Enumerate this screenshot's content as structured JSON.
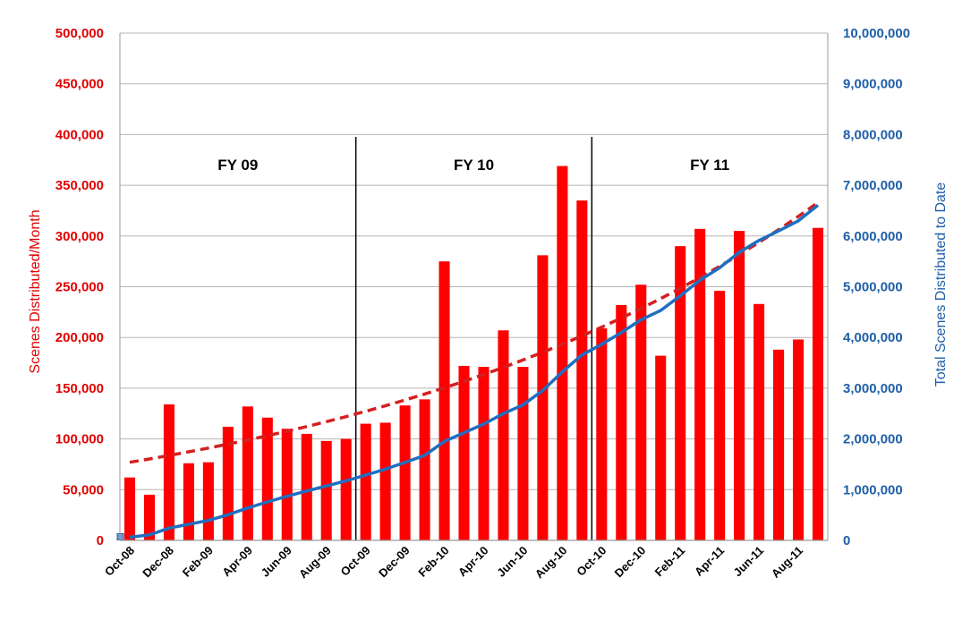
{
  "chart_data": {
    "type": "bar",
    "title": "",
    "ylabel_left": "Scenes Distributed/Month",
    "ylabel_right": "Total Scenes Distributed to Date",
    "y_left_range": [
      0,
      500000
    ],
    "y_right_range": [
      0,
      10000000
    ],
    "grid": true,
    "legend": "none",
    "y_left_ticks": [
      "0",
      "50,000",
      "100,000",
      "150,000",
      "200,000",
      "250,000",
      "300,000",
      "350,000",
      "400,000",
      "450,000",
      "500,000"
    ],
    "y_right_ticks": [
      "0",
      "1,000,000",
      "2,000,000",
      "3,000,000",
      "4,000,000",
      "5,000,000",
      "6,000,000",
      "7,000,000",
      "8,000,000",
      "9,000,000",
      "10,000,000"
    ],
    "x_tick_labels": [
      "Oct-08",
      "Dec-08",
      "Feb-09",
      "Apr-09",
      "Jun-09",
      "Aug-09",
      "Oct-09",
      "Dec-09",
      "Feb-10",
      "Apr-10",
      "Jun-10",
      "Aug-10",
      "Oct-10",
      "Dec-10",
      "Feb-11",
      "Apr-11",
      "Jun-11",
      "Aug-11"
    ],
    "categories": [
      "Oct-08",
      "Nov-08",
      "Dec-08",
      "Jan-09",
      "Feb-09",
      "Mar-09",
      "Apr-09",
      "May-09",
      "Jun-09",
      "Jul-09",
      "Aug-09",
      "Sep-09",
      "Oct-09",
      "Nov-09",
      "Dec-09",
      "Jan-10",
      "Feb-10",
      "Mar-10",
      "Apr-10",
      "May-10",
      "Jun-10",
      "Jul-10",
      "Aug-10",
      "Sep-10",
      "Oct-10",
      "Nov-10",
      "Dec-10",
      "Jan-11",
      "Feb-11",
      "Mar-11",
      "Apr-11",
      "May-11",
      "Jun-11",
      "Jul-11",
      "Aug-11",
      "Sep-11"
    ],
    "series": [
      {
        "type": "bar",
        "axis": "left",
        "values": [
          62000,
          45000,
          134000,
          76000,
          77000,
          112000,
          132000,
          121000,
          110000,
          105000,
          98000,
          100000,
          115000,
          116000,
          133000,
          139000,
          275000,
          172000,
          171000,
          207000,
          171000,
          281000,
          369000,
          335000,
          209000,
          232000,
          252000,
          182000,
          290000,
          307000,
          246000,
          305000,
          233000,
          188000,
          198000,
          308000
        ]
      },
      {
        "type": "line",
        "axis": "right",
        "values": [
          62000,
          107000,
          241000,
          317000,
          394000,
          506000,
          638000,
          759000,
          869000,
          974000,
          1072000,
          1172000,
          1287000,
          1403000,
          1536000,
          1675000,
          1950000,
          2122000,
          2293000,
          2500000,
          2671000,
          2952000,
          3321000,
          3656000,
          3865000,
          4097000,
          4349000,
          4531000,
          4821000,
          5128000,
          5374000,
          5679000,
          5912000,
          6100000,
          6298000,
          6606000
        ]
      },
      {
        "type": "trend",
        "axis": "left",
        "style": "dashed",
        "start": 77000,
        "end": 333000
      }
    ],
    "annotations": [
      {
        "text": "FY 09",
        "after_index": null
      },
      {
        "text": "FY 10",
        "after_index": 11
      },
      {
        "text": "FY 11",
        "after_index": 23
      }
    ],
    "colors": {
      "bars": "#ff0000",
      "cumulative_line": "#1f6fc0",
      "trend": "#d42020",
      "left_axis": "#e00000",
      "right_axis": "#1f5fa8",
      "grid": "#b5b5b5"
    }
  }
}
